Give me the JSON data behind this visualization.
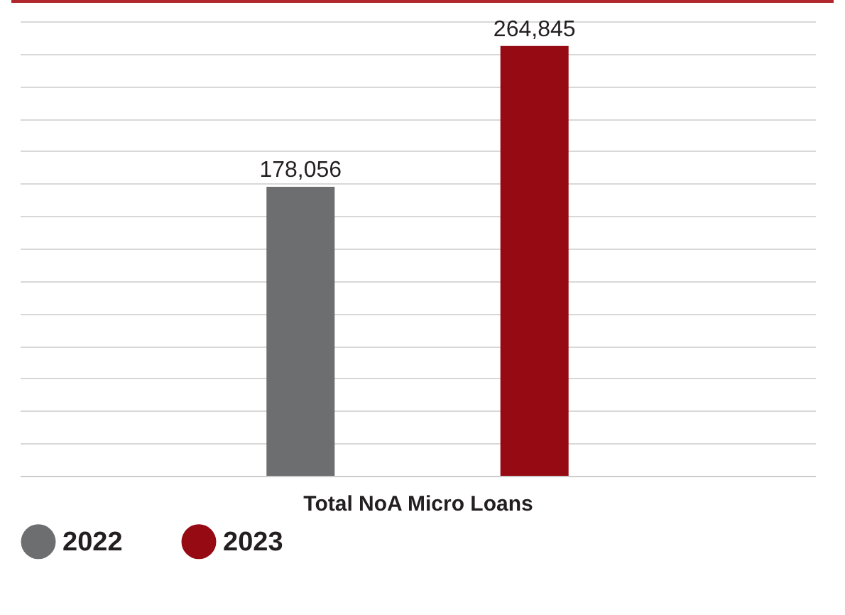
{
  "chart_data": {
    "type": "bar",
    "xlabel": "Total NoA Micro Loans",
    "categories": [
      null,
      null
    ],
    "stacked": true,
    "series": [
      {
        "name": "2022",
        "color": "#6d6e70",
        "values": [
          178056,
          null
        ],
        "value_labels": [
          "178,056",
          null
        ]
      },
      {
        "name": "2023",
        "color": "#960a14",
        "values": [
          null,
          264845
        ],
        "value_labels": [
          null,
          "264,845"
        ]
      }
    ],
    "grid": "y",
    "legend": "bottom",
    "tick_labels": false
  }
}
